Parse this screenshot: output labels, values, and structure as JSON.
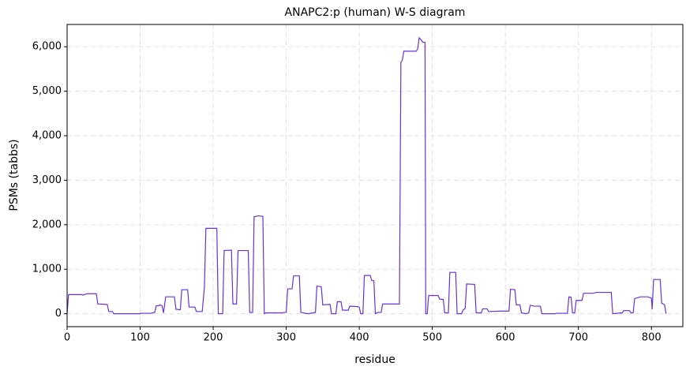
{
  "chart_data": {
    "type": "line",
    "title": "ANAPC2:p (human) W-S diagram",
    "x_label": "residue",
    "y_label": "PSMs (tabbs)",
    "xlim": [
      0,
      843
    ],
    "ylim": [
      -290,
      6500
    ],
    "xticks": [
      0,
      100,
      200,
      300,
      400,
      500,
      600,
      700,
      800
    ],
    "yticks": [
      0,
      {
        "value": 1000,
        "label": "1,000"
      },
      {
        "value": 2000,
        "label": "2,000"
      },
      {
        "value": 3000,
        "label": "3,000"
      },
      {
        "value": 4000,
        "label": "4,000"
      },
      {
        "value": 5000,
        "label": "5,000"
      },
      {
        "value": 6000,
        "label": "6,000"
      }
    ],
    "grid": true,
    "series": [
      {
        "color": "#6633dd",
        "x": [
          0,
          2,
          20,
          22,
          25,
          28,
          40,
          42,
          55,
          57,
          62,
          64,
          100,
          101,
          115,
          117,
          120,
          122,
          125,
          127,
          130,
          132,
          135,
          147,
          149,
          155,
          157,
          165,
          167,
          175,
          177,
          185,
          188,
          190,
          205,
          207,
          213,
          215,
          225,
          227,
          232,
          234,
          248,
          250,
          254,
          256,
          262,
          268,
          270,
          272,
          295,
          297,
          300,
          302,
          308,
          310,
          318,
          320,
          330,
          340,
          342,
          348,
          350,
          360,
          362,
          368,
          370,
          375,
          377,
          385,
          387,
          398,
          400,
          402,
          405,
          407,
          415,
          417,
          420,
          422,
          425,
          430,
          432,
          455,
          457,
          459,
          461,
          478,
          480,
          482,
          485,
          487,
          490,
          491,
          493,
          495,
          508,
          510,
          515,
          517,
          522,
          524,
          532,
          534,
          540,
          542,
          545,
          547,
          558,
          560,
          567,
          569,
          575,
          577,
          595,
          605,
          607,
          613,
          615,
          620,
          622,
          628,
          632,
          634,
          640,
          648,
          650,
          668,
          670,
          685,
          687,
          690,
          692,
          695,
          697,
          705,
          707,
          720,
          725,
          745,
          747,
          760,
          762,
          770,
          772,
          775,
          777,
          785,
          795,
          800,
          801,
          803,
          812,
          814,
          818,
          820
        ],
        "values": [
          0,
          430,
          430,
          420,
          440,
          450,
          450,
          220,
          210,
          50,
          50,
          0,
          0,
          10,
          10,
          20,
          30,
          180,
          180,
          200,
          180,
          20,
          380,
          380,
          100,
          90,
          540,
          540,
          150,
          150,
          50,
          50,
          600,
          1920,
          1920,
          0,
          0,
          1420,
          1430,
          220,
          220,
          1420,
          1420,
          30,
          30,
          2180,
          2200,
          2190,
          0,
          20,
          20,
          30,
          30,
          560,
          560,
          850,
          850,
          30,
          0,
          30,
          620,
          610,
          200,
          210,
          0,
          0,
          270,
          270,
          80,
          80,
          170,
          160,
          150,
          0,
          0,
          860,
          860,
          750,
          740,
          0,
          30,
          30,
          220,
          220,
          5650,
          5700,
          5900,
          5900,
          5950,
          6200,
          6150,
          6100,
          6100,
          0,
          0,
          410,
          410,
          330,
          320,
          20,
          20,
          930,
          930,
          0,
          0,
          80,
          120,
          670,
          660,
          20,
          20,
          110,
          110,
          50,
          60,
          60,
          550,
          540,
          200,
          200,
          20,
          0,
          20,
          190,
          170,
          170,
          0,
          0,
          10,
          10,
          380,
          370,
          20,
          20,
          300,
          300,
          460,
          460,
          480,
          480,
          0,
          20,
          70,
          70,
          20,
          20,
          340,
          380,
          380,
          350,
          100,
          770,
          770,
          240,
          200,
          0
        ]
      }
    ]
  }
}
